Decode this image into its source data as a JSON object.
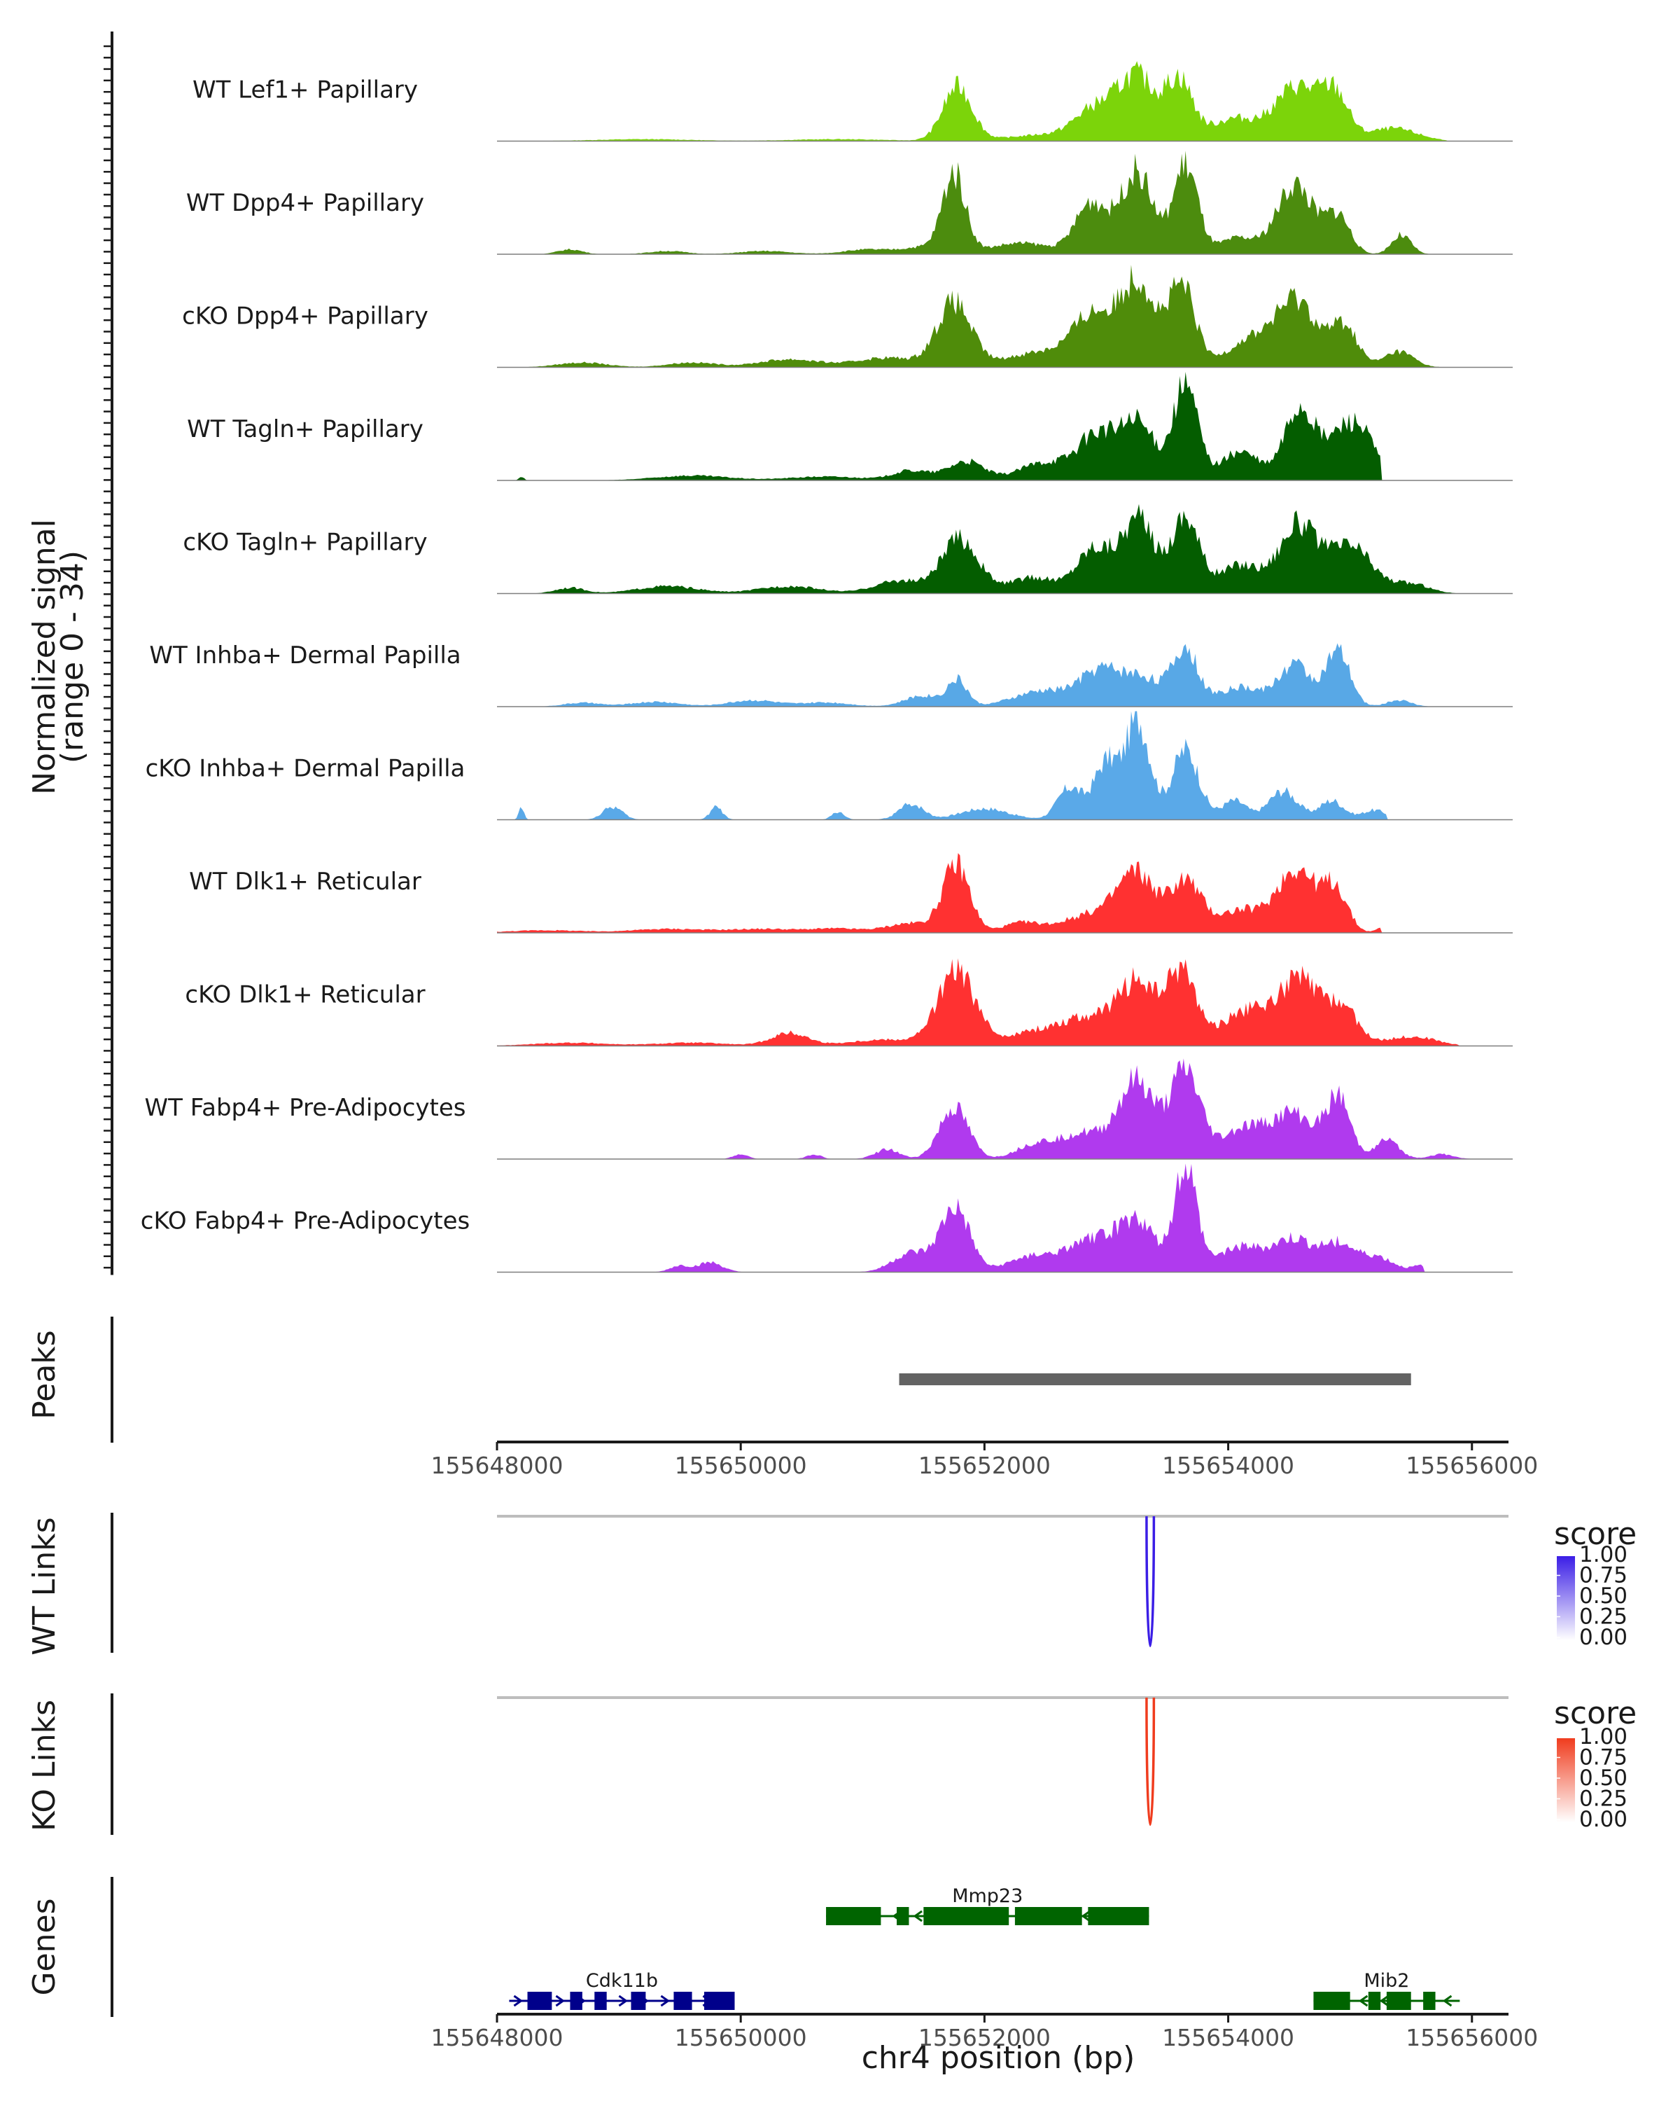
{
  "chart_data": {
    "type": "area",
    "title": "",
    "region": "chr4",
    "xlabel": "chr4 position (bp)",
    "xlim": [
      155648000,
      155656300
    ],
    "x_ticks": [
      155648000,
      155650000,
      155652000,
      155654000,
      155656000
    ],
    "x_tick_labels": [
      "155648000",
      "155650000",
      "155652000",
      "155654000",
      "155656000"
    ],
    "coverage_ylabel": [
      "Normalized signal",
      "(range 0 - 34)"
    ],
    "ylim": [
      0,
      34
    ],
    "peak_centers": [
      155651750,
      155652900,
      155653300,
      155653650,
      155654550,
      155654850
    ],
    "tracks": [
      {
        "name": "WT Lef1+ Papillary",
        "color": "#7cd40a",
        "extent": [
          155648000,
          155655800
        ],
        "peaks": [
          [
            155649200,
            0.6,
            400
          ],
          [
            155650800,
            0.6,
            400
          ],
          [
            155651780,
            17,
            120
          ],
          [
            155652500,
            2,
            300
          ],
          [
            155652900,
            9,
            160
          ],
          [
            155653250,
            20,
            160
          ],
          [
            155653600,
            18,
            110
          ],
          [
            155654050,
            7,
            200
          ],
          [
            155654570,
            17,
            180
          ],
          [
            155654880,
            13,
            110
          ],
          [
            155655350,
            4,
            200
          ]
        ]
      },
      {
        "name": "WT Dpp4+ Papillary",
        "color": "#4c8c0e",
        "extent": [
          155648000,
          155655850
        ],
        "peaks": [
          [
            155648600,
            1.5,
            100
          ],
          [
            155649400,
            1,
            150
          ],
          [
            155650200,
            1,
            200
          ],
          [
            155651050,
            1.5,
            200
          ],
          [
            155651480,
            2,
            150
          ],
          [
            155651750,
            25,
            95
          ],
          [
            155652300,
            3.5,
            250
          ],
          [
            155652880,
            16,
            130
          ],
          [
            155653250,
            26,
            130
          ],
          [
            155653650,
            28,
            100
          ],
          [
            155654080,
            5,
            150
          ],
          [
            155654550,
            22,
            150
          ],
          [
            155654900,
            12,
            100
          ],
          [
            155655420,
            6,
            80
          ]
        ]
      },
      {
        "name": "cKO Dpp4+ Papillary",
        "color": "#4f8c0a",
        "extent": [
          155648000,
          155655950
        ],
        "peaks": [
          [
            155648700,
            1.5,
            200
          ],
          [
            155649600,
            1.5,
            200
          ],
          [
            155650400,
            2.5,
            250
          ],
          [
            155651200,
            3,
            250
          ],
          [
            155651750,
            20,
            140
          ],
          [
            155652500,
            5,
            300
          ],
          [
            155652900,
            15,
            160
          ],
          [
            155653260,
            27,
            140
          ],
          [
            155653620,
            25,
            110
          ],
          [
            155654200,
            9,
            200
          ],
          [
            155654570,
            20,
            160
          ],
          [
            155654950,
            13,
            110
          ],
          [
            155655400,
            5,
            120
          ]
        ]
      },
      {
        "name": "WT Tagln+ Papillary",
        "color": "#045d00",
        "extent": [
          155648100,
          155655250
        ],
        "peaks": [
          [
            155648200,
            1.2,
            20
          ],
          [
            155649600,
            1.5,
            300
          ],
          [
            155650700,
            1.2,
            300
          ],
          [
            155651400,
            3,
            150
          ],
          [
            155651850,
            6,
            150
          ],
          [
            155652350,
            2.5,
            150
          ],
          [
            155652600,
            5,
            180
          ],
          [
            155652920,
            13,
            140
          ],
          [
            155653250,
            18,
            150
          ],
          [
            155653650,
            30,
            100
          ],
          [
            155654100,
            9,
            160
          ],
          [
            155654580,
            22,
            120
          ],
          [
            155654980,
            16,
            180
          ],
          [
            155655100,
            4,
            120
          ]
        ]
      },
      {
        "name": "cKO Tagln+ Papillary",
        "color": "#045d00",
        "extent": [
          155648200,
          155655950
        ],
        "peaks": [
          [
            155648600,
            1.8,
            120
          ],
          [
            155649400,
            2.3,
            250
          ],
          [
            155650400,
            2.3,
            250
          ],
          [
            155651300,
            4,
            200
          ],
          [
            155651800,
            17,
            150
          ],
          [
            155652400,
            5,
            200
          ],
          [
            155652900,
            14,
            140
          ],
          [
            155653260,
            23,
            140
          ],
          [
            155653650,
            24,
            110
          ],
          [
            155654100,
            9,
            180
          ],
          [
            155654570,
            21,
            150
          ],
          [
            155655000,
            15,
            180
          ],
          [
            155655500,
            3,
            150
          ]
        ]
      },
      {
        "name": "WT Inhba+ Dermal Papilla",
        "color": "#58a8e6",
        "extent": [
          155648000,
          155655800
        ],
        "peaks": [
          [
            155648700,
            1.2,
            150
          ],
          [
            155649300,
            1.5,
            200
          ],
          [
            155650100,
            2,
            200
          ],
          [
            155650700,
            1.3,
            200
          ],
          [
            155651500,
            3.5,
            150
          ],
          [
            155651780,
            8,
            80
          ],
          [
            155652500,
            5,
            250
          ],
          [
            155652950,
            10,
            160
          ],
          [
            155653300,
            9,
            180
          ],
          [
            155653650,
            17,
            100
          ],
          [
            155654100,
            6,
            200
          ],
          [
            155654550,
            13,
            130
          ],
          [
            155654900,
            17,
            100
          ],
          [
            155655400,
            2,
            100
          ]
        ]
      },
      {
        "name": "cKO Inhba+ Dermal Papilla",
        "color": "#5aa9e8",
        "extent": [
          155648100,
          155655300
        ],
        "peaks": [
          [
            155648200,
            4,
            20
          ],
          [
            155648950,
            4,
            80
          ],
          [
            155649800,
            4,
            50
          ],
          [
            155650800,
            2.5,
            50
          ],
          [
            155651400,
            5,
            100
          ],
          [
            155652000,
            3.5,
            200
          ],
          [
            155652700,
            10,
            100
          ],
          [
            155653000,
            18,
            100
          ],
          [
            155653260,
            31,
            100
          ],
          [
            155653650,
            22,
            110
          ],
          [
            155654050,
            6,
            100
          ],
          [
            155654450,
            9,
            120
          ],
          [
            155654850,
            6,
            100
          ],
          [
            155655200,
            3,
            100
          ]
        ]
      },
      {
        "name": "WT Dlk1+ Reticular",
        "color": "#ff3131",
        "extent": [
          155648000,
          155655250
        ],
        "peaks": [
          [
            155648400,
            0.8,
            300
          ],
          [
            155649400,
            1.2,
            300
          ],
          [
            155650200,
            1.2,
            300
          ],
          [
            155650800,
            1.2,
            200
          ],
          [
            155651400,
            3,
            200
          ],
          [
            155651770,
            21,
            110
          ],
          [
            155652300,
            3,
            150
          ],
          [
            155652900,
            6,
            250
          ],
          [
            155653250,
            17,
            150
          ],
          [
            155653650,
            16,
            130
          ],
          [
            155654100,
            7,
            180
          ],
          [
            155654560,
            20,
            160
          ],
          [
            155654880,
            13,
            100
          ],
          [
            155655350,
            4,
            80
          ]
        ]
      },
      {
        "name": "cKO Dlk1+ Reticular",
        "color": "#ff3131",
        "extent": [
          155648000,
          155655900
        ],
        "peaks": [
          [
            155648600,
            1,
            300
          ],
          [
            155649600,
            1,
            300
          ],
          [
            155650400,
            4,
            150
          ],
          [
            155651200,
            2,
            300
          ],
          [
            155651770,
            23,
            150
          ],
          [
            155652500,
            5,
            300
          ],
          [
            155652900,
            7,
            200
          ],
          [
            155653260,
            19,
            150
          ],
          [
            155653620,
            23,
            120
          ],
          [
            155654150,
            11,
            200
          ],
          [
            155654580,
            20,
            160
          ],
          [
            155654930,
            12,
            130
          ],
          [
            155655500,
            3,
            200
          ]
        ]
      },
      {
        "name": "WT Fabp4+ Pre-Adipocytes",
        "color": "#b03aee",
        "extent": [
          155648000,
          155656000
        ],
        "peaks": [
          [
            155650000,
            1.5,
            60
          ],
          [
            155650600,
            1.5,
            60
          ],
          [
            155651200,
            3,
            100
          ],
          [
            155651750,
            16,
            120
          ],
          [
            155652400,
            4,
            150
          ],
          [
            155652800,
            8,
            200
          ],
          [
            155653250,
            24,
            150
          ],
          [
            155653650,
            27,
            120
          ],
          [
            155654150,
            10,
            200
          ],
          [
            155654550,
            13,
            160
          ],
          [
            155654900,
            19,
            100
          ],
          [
            155655300,
            6,
            100
          ],
          [
            155655750,
            1.5,
            100
          ]
        ]
      },
      {
        "name": "cKO Fabp4+ Pre-Adipocytes",
        "color": "#b03aee",
        "extent": [
          155648000,
          155655600
        ],
        "peaks": [
          [
            155649500,
            2,
            80
          ],
          [
            155649750,
            3,
            100
          ],
          [
            155651400,
            6,
            150
          ],
          [
            155651760,
            20,
            120
          ],
          [
            155652400,
            5,
            200
          ],
          [
            155652900,
            10,
            200
          ],
          [
            155653260,
            15,
            150
          ],
          [
            155653650,
            33,
            90
          ],
          [
            155654100,
            8,
            200
          ],
          [
            155654550,
            10,
            160
          ],
          [
            155654900,
            8,
            120
          ],
          [
            155655200,
            5,
            150
          ],
          [
            155655600,
            2,
            80
          ]
        ]
      }
    ],
    "peaks_track": {
      "label": "Peaks",
      "intervals": [
        [
          155651300,
          155655500
        ]
      ],
      "color": "#636363"
    },
    "links": [
      {
        "label": "WT Links",
        "start": 155653330,
        "end": 155653390,
        "score": 1.0,
        "color": "#3b1ee6",
        "legend_title": "score",
        "legend_ticks": [
          "1.00",
          "0.75",
          "0.50",
          "0.25",
          "0.00"
        ]
      },
      {
        "label": "KO Links",
        "start": 155653330,
        "end": 155653390,
        "score": 1.0,
        "color": "#f03c1e",
        "legend_title": "score",
        "legend_ticks": [
          "1.00",
          "0.75",
          "0.50",
          "0.25",
          "0.00"
        ]
      }
    ],
    "genes_label": "Genes",
    "genes": [
      {
        "name": "Mmp23",
        "strand": "-",
        "color": "#006400",
        "start": 155650700,
        "end": 155653350,
        "row": 1,
        "exons": [
          [
            155650700,
            155651150
          ],
          [
            155651280,
            155651380
          ],
          [
            155651500,
            155652200
          ],
          [
            155652250,
            155652800
          ],
          [
            155652850,
            155653350
          ]
        ]
      },
      {
        "name": "Cdk11b",
        "strand": "+",
        "color": "#00008b",
        "start": 155648100,
        "end": 155649950,
        "row": 2,
        "exons": [
          [
            155648250,
            155648450
          ],
          [
            155648600,
            155648700
          ],
          [
            155648800,
            155648900
          ],
          [
            155649100,
            155649220
          ],
          [
            155649450,
            155649600
          ],
          [
            155649700,
            155649950
          ]
        ]
      },
      {
        "name": "Mib2",
        "strand": "-",
        "color": "#006400",
        "start": 155654700,
        "end": 155655900,
        "row": 2,
        "exons": [
          [
            155654700,
            155655000
          ],
          [
            155655150,
            155655250
          ],
          [
            155655300,
            155655500
          ],
          [
            155655600,
            155655700
          ]
        ]
      }
    ]
  }
}
